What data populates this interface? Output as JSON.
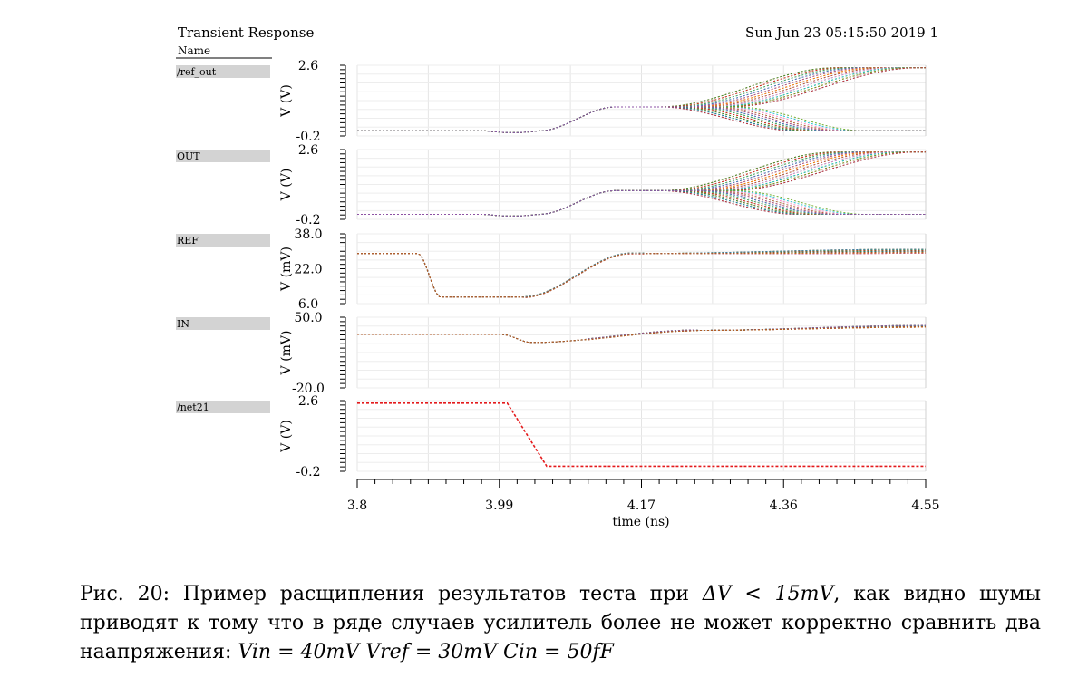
{
  "chart_data": {
    "type": "line",
    "title": "Transient Response",
    "timestamp": "Sun Jun 23 05:15:50 2019 1",
    "legend_header": "Name",
    "xlabel": "time (ns)",
    "xlim": [
      3.8,
      4.55
    ],
    "xticks": [
      "3.8",
      "3.99",
      "4.17",
      "4.36",
      "4.55"
    ],
    "panels": [
      {
        "name": "/ref_out",
        "ylabel": "V (V)",
        "ylim": [
          -0.2,
          2.6
        ],
        "yticks": [
          "2.6",
          "-0.2"
        ],
        "low": 0.0,
        "high": 2.5,
        "mid": 0.95,
        "kind": "split"
      },
      {
        "name": "OUT",
        "ylabel": "V (V)",
        "ylim": [
          -0.2,
          2.6
        ],
        "yticks": [
          "2.6",
          "-0.2"
        ],
        "low": 0.0,
        "high": 2.5,
        "mid": 0.95,
        "kind": "split"
      },
      {
        "name": "REF",
        "ylabel": "V (mV)",
        "ylim": [
          6.0,
          38.0
        ],
        "yticks": [
          "38.0",
          "22.0",
          "6.0"
        ],
        "kind": "ref"
      },
      {
        "name": "IN",
        "ylabel": "V (mV)",
        "ylim": [
          -20.0,
          50.0
        ],
        "yticks": [
          "50.0",
          "-20.0"
        ],
        "kind": "in"
      },
      {
        "name": "/net21",
        "ylabel": "V (V)",
        "ylim": [
          -0.2,
          2.6
        ],
        "yticks": [
          "2.6",
          "-0.2"
        ],
        "kind": "step",
        "x": [
          3.8,
          3.998,
          4.05,
          4.55
        ],
        "y": [
          2.5,
          2.5,
          0.0,
          0.0
        ]
      }
    ],
    "series_colors": [
      "#e41a1c",
      "#4daf4a",
      "#377eb8",
      "#984ea3",
      "#ff7f00",
      "#a65628",
      "#f781bf",
      "#17becf",
      "#66a61e",
      "#d62728",
      "#1f77b4",
      "#2ca02c"
    ]
  },
  "caption": {
    "line1_text": "Рис. 20: Пример расщипления результатов теста при ",
    "line1_math": "ΔV < 15mV",
    "line1_tail": ", как видно шумы приводят к тому что в ряде случаев усилитель более не может корректно сравнить два наапряжения: ",
    "math_vin": "Vin = 40mV",
    "math_vref": "Vref = 30mV",
    "math_cin": "Cin = 50fF"
  }
}
